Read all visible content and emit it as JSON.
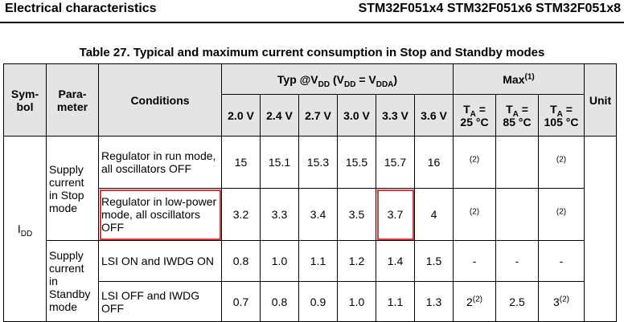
{
  "page": {
    "section_title": "Electrical characteristics",
    "part_numbers": "STM32F051x4 STM32F051x6 STM32F051x8"
  },
  "table": {
    "caption": "Table 27. Typical and maximum current consumption in Stop and Standby modes",
    "headers": {
      "symbol": "Sym-bol",
      "parameter": "Para-meter",
      "conditions": "Conditions",
      "typ_label": "Typ @V",
      "typ_sub1": "DD",
      "typ_mid": " (V",
      "typ_sub2": "DD",
      "typ_eq": " = V",
      "typ_sub3": "DDA",
      "typ_end": ")",
      "max_label": "Max",
      "max_note": "(1)",
      "unit": "Unit",
      "voltages": [
        "2.0 V",
        "2.4 V",
        "2.7 V",
        "3.0 V",
        "3.3 V",
        "3.6 V"
      ],
      "temps": [
        "25 °C",
        "85 °C",
        "105 °C"
      ],
      "ta": "T",
      "ta_sub": "A",
      "ta_eq": " ="
    },
    "symbol_main": "I",
    "symbol_sub": "DD",
    "param_stop": "Supply current in Stop mode",
    "param_standby": "Supply current in Standby mode",
    "rows": [
      {
        "condition": "Regulator in run mode, all oscillators OFF",
        "typ": [
          "15",
          "15.1",
          "15.3",
          "15.5",
          "15.7",
          "16"
        ],
        "max": [
          {
            "v": "",
            "n": "(2)"
          },
          {
            "v": "",
            "n": ""
          },
          {
            "v": "",
            "n": "(2)"
          }
        ]
      },
      {
        "condition": "Regulator in low-power mode, all oscillators OFF",
        "typ": [
          "3.2",
          "3.3",
          "3.4",
          "3.5",
          "3.7",
          "4"
        ],
        "max": [
          {
            "v": "",
            "n": "(2)"
          },
          {
            "v": "",
            "n": ""
          },
          {
            "v": "",
            "n": "(2)"
          }
        ]
      },
      {
        "condition": "LSI ON and IWDG ON",
        "typ": [
          "0.8",
          "1.0",
          "1.1",
          "1.2",
          "1.4",
          "1.5"
        ],
        "max": [
          {
            "v": "-",
            "n": ""
          },
          {
            "v": "-",
            "n": ""
          },
          {
            "v": "-",
            "n": ""
          }
        ]
      },
      {
        "condition": "LSI OFF and IWDG OFF",
        "typ": [
          "0.7",
          "0.8",
          "0.9",
          "1.0",
          "1.1",
          "1.3"
        ],
        "max": [
          {
            "v": "2",
            "n": "(2)"
          },
          {
            "v": "2.5",
            "n": ""
          },
          {
            "v": "3",
            "n": "(2)"
          }
        ]
      }
    ],
    "highlight_color": "#e0383a"
  }
}
